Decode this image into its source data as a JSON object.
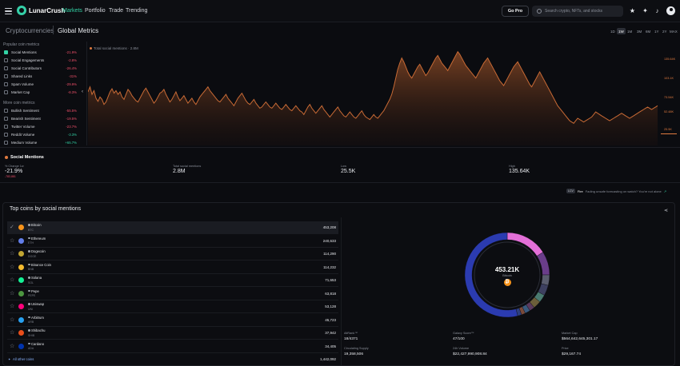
{
  "app": {
    "brand": "LunarCrush",
    "nav": [
      "Markets",
      "Portfolio",
      "Trade",
      "Trending"
    ],
    "go_pro": "Go Pro",
    "search_placeholder": "Search crypto, NFTs, and stocks"
  },
  "breadcrumb": {
    "section": "Cryptocurrencies",
    "page": "Global Metrics"
  },
  "time_ranges": [
    "1D",
    "1W",
    "1M",
    "3M",
    "6M",
    "1Y",
    "2Y",
    "MAX"
  ],
  "time_range_selected": "1W",
  "sidebar": {
    "popular_label": "Popular coin metrics",
    "popular": [
      {
        "name": "Social Mentions",
        "value": "-21.9%",
        "checked": true,
        "trend": "neg"
      },
      {
        "name": "Social Engagements",
        "value": "-2.8%",
        "checked": false,
        "trend": "neg"
      },
      {
        "name": "Social Contributors",
        "value": "-26.4%",
        "checked": false,
        "trend": "neg"
      },
      {
        "name": "Shared Links",
        "value": "-31%",
        "checked": false,
        "trend": "neg"
      },
      {
        "name": "Spam Volume",
        "value": "-29.9%",
        "checked": false,
        "trend": "neg"
      },
      {
        "name": "Market Cap",
        "value": "-8.3%",
        "checked": false,
        "trend": "neg"
      }
    ],
    "more_label": "More coin metrics",
    "more": [
      {
        "name": "Bullish Sentiment",
        "value": "-55.5%",
        "checked": false,
        "trend": "neg"
      },
      {
        "name": "Bearish Sentiment",
        "value": "-19.5%",
        "checked": false,
        "trend": "neg"
      },
      {
        "name": "Twitter Volume",
        "value": "-23.7%",
        "checked": false,
        "trend": "neg"
      },
      {
        "name": "Reddit Volume",
        "value": "-3.3%",
        "checked": false,
        "trend": "pos"
      },
      {
        "name": "Medium Volume",
        "value": "+65.7%",
        "checked": false,
        "trend": "pos"
      }
    ]
  },
  "chart_legend": "Total social mentions · 2.8M",
  "chart_data": {
    "type": "area",
    "series": [
      {
        "name": "Total social mentions",
        "color": "#e07a3f",
        "values": [
          70,
          78,
          66,
          72,
          60,
          55,
          62,
          58,
          50,
          54,
          62,
          70,
          75,
          68,
          72,
          66,
          70,
          62,
          58,
          66,
          74,
          70,
          64,
          60,
          56,
          54,
          60,
          66,
          72,
          76,
          70,
          64,
          58,
          52,
          56,
          62,
          68,
          70,
          74,
          66,
          60,
          54,
          58,
          64,
          70,
          62,
          56,
          60,
          64,
          58,
          52,
          56,
          60,
          54,
          50,
          56,
          62,
          66,
          70,
          74,
          78,
          72,
          68,
          64,
          60,
          56,
          54,
          58,
          62,
          66,
          60,
          56,
          52,
          48,
          54,
          60,
          64,
          68,
          62,
          56,
          52,
          50,
          54,
          58,
          52,
          48,
          44,
          46,
          50,
          54,
          50,
          46,
          44,
          48,
          52,
          48,
          44,
          42,
          46,
          50,
          46,
          42,
          40,
          44,
          48,
          44,
          40,
          38,
          34,
          40,
          46,
          50,
          44,
          40,
          36,
          40,
          44,
          48,
          42,
          38,
          34,
          30,
          34,
          38,
          42,
          46,
          40,
          36,
          32,
          30,
          34,
          38,
          34,
          30,
          28,
          32,
          36,
          40,
          34,
          30,
          28,
          26,
          30,
          34,
          30,
          28,
          32,
          36,
          40,
          46,
          52,
          58,
          66,
          78,
          92,
          106,
          116,
          124,
          118,
          110,
          102,
          96,
          92,
          98,
          104,
          110,
          114,
          108,
          102,
          96,
          100,
          106,
          112,
          118,
          124,
          128,
          122,
          116,
          112,
          108,
          104,
          110,
          116,
          122,
          128,
          134,
          130,
          124,
          118,
          112,
          108,
          104,
          100,
          96,
          92,
          98,
          104,
          110,
          116,
          120,
          124,
          118,
          112,
          106,
          100,
          94,
          88,
          84,
          80,
          86,
          92,
          98,
          104,
          110,
          114,
          118,
          112,
          106,
          100,
          94,
          88,
          82,
          78,
          84,
          90,
          96,
          102,
          96,
          90,
          84,
          78,
          72,
          66,
          60,
          54,
          48,
          44,
          40,
          36,
          32,
          28,
          24,
          22,
          20,
          24,
          28,
          26,
          24,
          22,
          24,
          26,
          28,
          30,
          34,
          38,
          36,
          34,
          32,
          30,
          28,
          26,
          24,
          26,
          28,
          30,
          32,
          34,
          36,
          34,
          32,
          30,
          28,
          30,
          32,
          34,
          36,
          38,
          40,
          42,
          44,
          46,
          44,
          42,
          44,
          46,
          48
        ]
      }
    ],
    "yticks": [
      "135.64K",
      "103.1K",
      "73.54K",
      "52.48K",
      "25.5K"
    ]
  },
  "stats": {
    "title": "Social Mentions",
    "change_label": "% Change 1w",
    "change_value": "-21.9%",
    "change_sub": "-783,881",
    "total_label": "Total social mentions",
    "total_value": "2.8M",
    "low_label": "Low",
    "low_value": "25.5K",
    "high_label": "High",
    "high_value": "135.64K"
  },
  "fire_bar": {
    "tag": "LCV",
    "label": "Fire",
    "text": "Fading unsafe forecasting on watch? You're not alone"
  },
  "coins_panel": {
    "title": "Top coins by social mentions",
    "rows": [
      {
        "name": "Bitcoin",
        "symbol": "BTC",
        "value": "453,208",
        "color": "#f7931a"
      },
      {
        "name": "Ethereum",
        "symbol": "ETH",
        "value": "240,633",
        "color": "#627eea"
      },
      {
        "name": "Dogecoin",
        "symbol": "DOGE",
        "value": "114,290",
        "color": "#c2a633"
      },
      {
        "name": "Binance Coin",
        "symbol": "BNB",
        "value": "114,232",
        "color": "#f3ba2f"
      },
      {
        "name": "Solana",
        "symbol": "SOL",
        "value": "71,653",
        "color": "#14f195"
      },
      {
        "name": "Pepe",
        "symbol": "PEPE",
        "value": "63,818",
        "color": "#4c9540"
      },
      {
        "name": "Uniswap",
        "symbol": "UNI",
        "value": "53,128",
        "color": "#ff007a"
      },
      {
        "name": "Arbitrum",
        "symbol": "ARB",
        "value": "45,723",
        "color": "#28a0f0"
      },
      {
        "name": "Shibachu",
        "symbol": "SHIB",
        "value": "37,942",
        "color": "#e94e1b"
      },
      {
        "name": "Cardano",
        "symbol": "ADA",
        "value": "34,405",
        "color": "#0033ad"
      }
    ],
    "all_other_label": "All other coins",
    "all_other_value": "1,442,092",
    "donut": {
      "center_value": "453.21K",
      "center_label": "Bitcoin",
      "segments": [
        {
          "label": "Bitcoin",
          "pct": 16,
          "color": "#e36fd8"
        },
        {
          "label": "Ethereum",
          "pct": 9,
          "color": "#6a3d8a"
        },
        {
          "label": "Dogecoin",
          "pct": 4,
          "color": "#5a5d6e"
        },
        {
          "label": "Binance Coin",
          "pct": 4,
          "color": "#3d4060"
        },
        {
          "label": "Solana",
          "pct": 3,
          "color": "#4a7a70"
        },
        {
          "label": "Pepe",
          "pct": 3,
          "color": "#6b5e3a"
        },
        {
          "label": "Uniswap",
          "pct": 2,
          "color": "#5b3a5e"
        },
        {
          "label": "Arbitrum",
          "pct": 2,
          "color": "#3a5a7e"
        },
        {
          "label": "Shibachu",
          "pct": 1.5,
          "color": "#7a4a3a"
        },
        {
          "label": "Cardano",
          "pct": 1.5,
          "color": "#2d3f7e"
        },
        {
          "label": "All other coins",
          "pct": 54,
          "color": "#2b3bb0"
        }
      ]
    },
    "info": [
      {
        "label": "AltRank™",
        "value": "18/4371"
      },
      {
        "label": "Galaxy Score™",
        "value": "47/100"
      },
      {
        "label": "Market Cap",
        "value": "$564,642,645,301.17"
      },
      {
        "label": "Circulating Supply",
        "value": "19,358,506"
      },
      {
        "label": "24h Volume",
        "value": "$22,427,990,908.84"
      },
      {
        "label": "Price",
        "value": "$29,167.74"
      }
    ]
  }
}
